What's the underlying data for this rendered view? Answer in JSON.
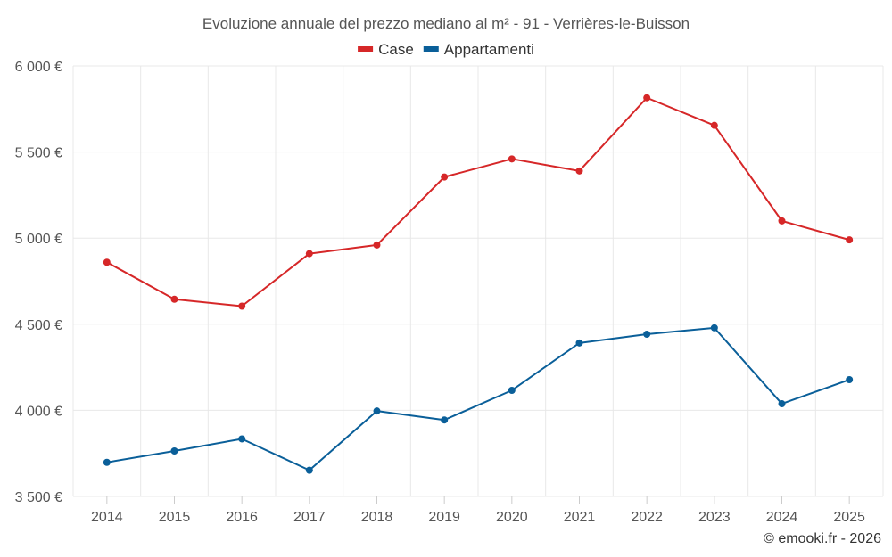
{
  "chart_data": {
    "type": "line",
    "title": "Evoluzione annuale del prezzo mediano al m² - 91 - Verrières-le-Buisson",
    "categories": [
      "2014",
      "2015",
      "2016",
      "2017",
      "2018",
      "2019",
      "2020",
      "2021",
      "2022",
      "2023",
      "2024",
      "2025"
    ],
    "series": [
      {
        "name": "Case",
        "color": "#d62728",
        "values": [
          4860,
          4645,
          4605,
          4910,
          4960,
          5355,
          5460,
          5390,
          5815,
          5655,
          5100,
          4990
        ]
      },
      {
        "name": "Appartamenti",
        "color": "#0a5f99",
        "values": [
          3698,
          3764,
          3834,
          3652,
          3996,
          3944,
          4116,
          4391,
          4442,
          4479,
          4038,
          4178
        ]
      }
    ],
    "ylim": [
      3500,
      6000
    ],
    "yticks": [
      3500,
      4000,
      4500,
      5000,
      5500,
      6000
    ],
    "ytick_labels": [
      "3 500 €",
      "4 000 €",
      "4 500 €",
      "5 000 €",
      "5 500 €",
      "6 000 €"
    ],
    "xlabel": "",
    "ylabel": "",
    "grid": true,
    "legend": "top-center"
  },
  "credit": "© emooki.fr - 2026"
}
